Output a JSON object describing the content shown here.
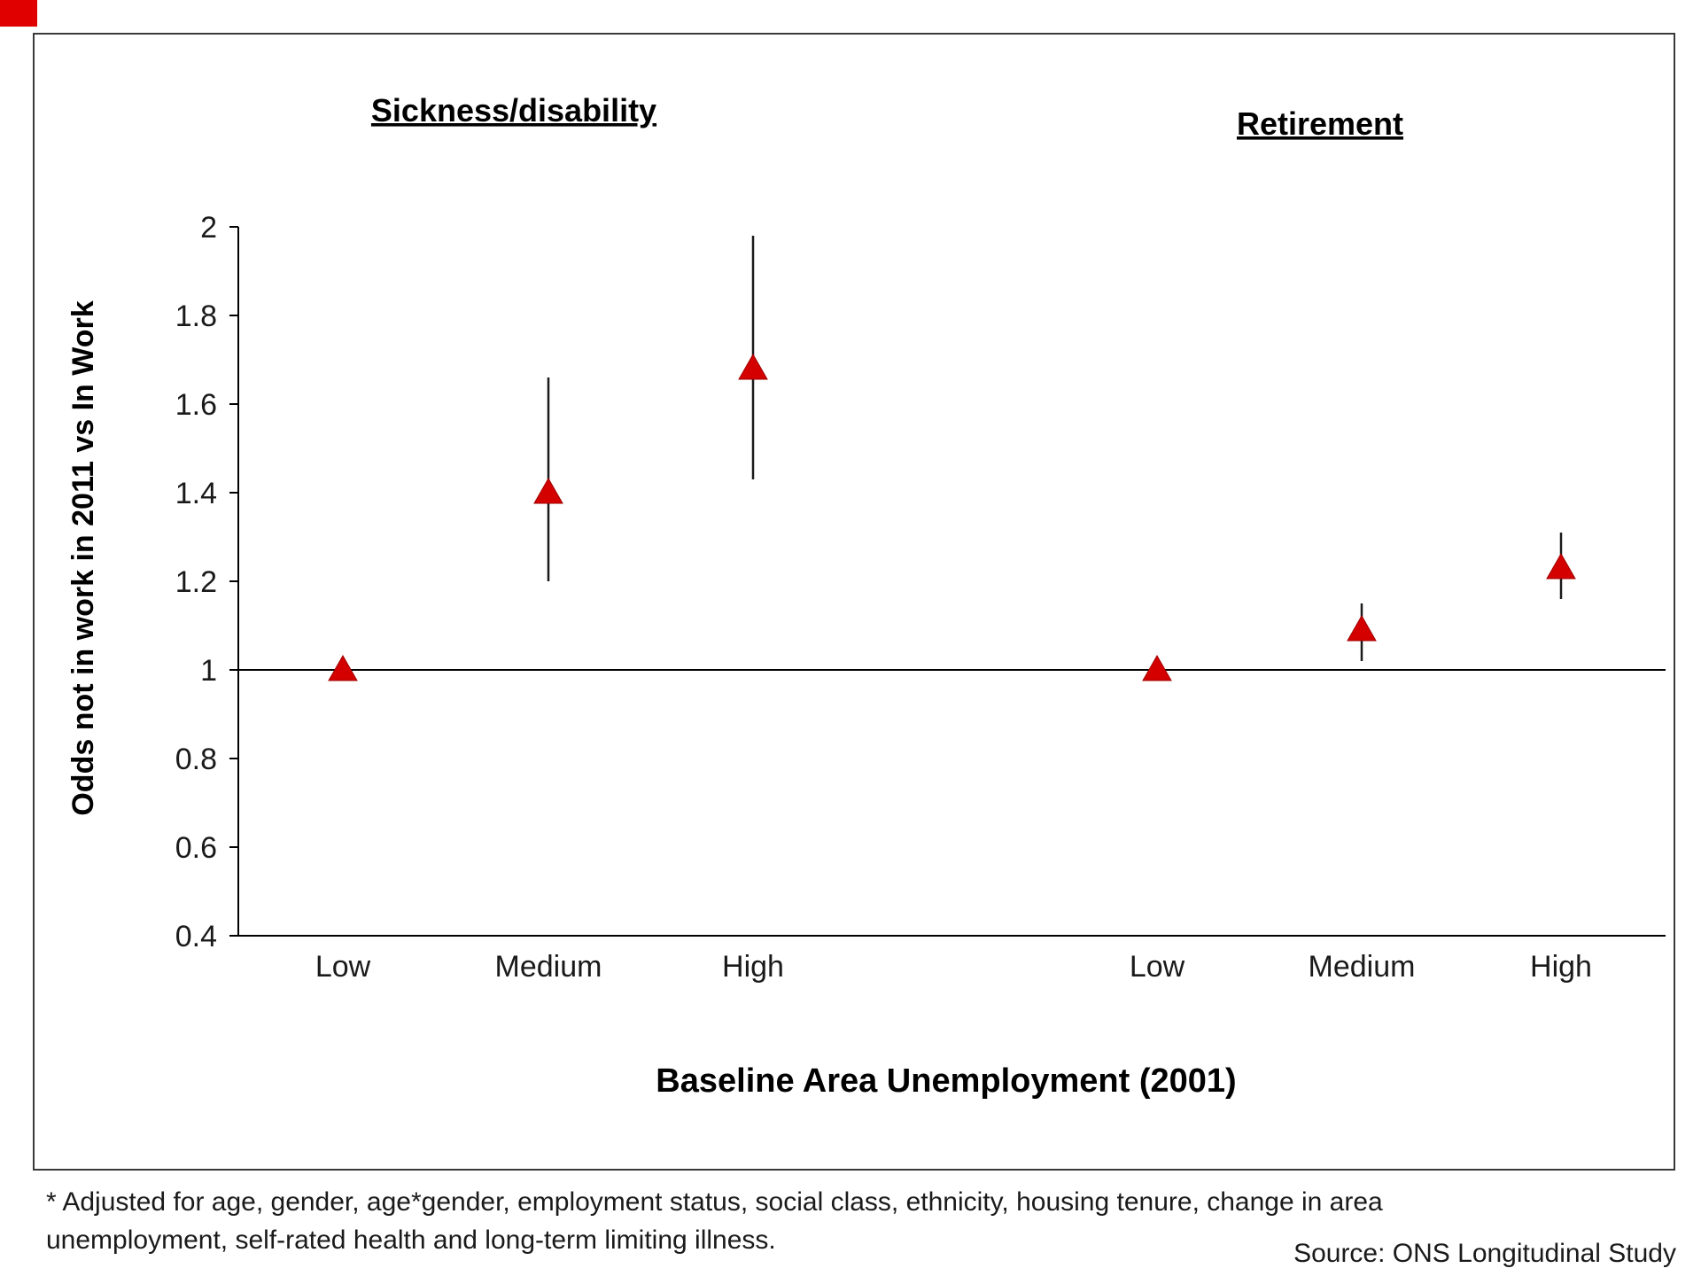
{
  "chart_data": {
    "type": "scatter",
    "title": "",
    "ylabel": "Odds not in work in 2011 vs In Work",
    "xlabel": "Baseline Area Unemployment (2001)",
    "ylim": [
      0.4,
      2
    ],
    "yticks": [
      0.4,
      0.6,
      0.8,
      1,
      1.2,
      1.4,
      1.6,
      1.8,
      2
    ],
    "reference_line": 1,
    "grid": "off",
    "legend": "none",
    "marker": "triangle-up",
    "marker_color": "#d40000",
    "panels": [
      {
        "title": "Sickness/disability",
        "categories": [
          "Low",
          "Medium",
          "High"
        ],
        "points": [
          {
            "category": "Low",
            "odds": 1.0,
            "ci_low": 1.0,
            "ci_high": 1.0
          },
          {
            "category": "Medium",
            "odds": 1.4,
            "ci_low": 1.2,
            "ci_high": 1.66
          },
          {
            "category": "High",
            "odds": 1.68,
            "ci_low": 1.43,
            "ci_high": 1.98
          }
        ]
      },
      {
        "title": "Retirement",
        "categories": [
          "Low",
          "Medium",
          "High"
        ],
        "points": [
          {
            "category": "Low",
            "odds": 1.0,
            "ci_low": 1.0,
            "ci_high": 1.0
          },
          {
            "category": "Medium",
            "odds": 1.09,
            "ci_low": 1.02,
            "ci_high": 1.15
          },
          {
            "category": "High",
            "odds": 1.23,
            "ci_low": 1.16,
            "ci_high": 1.31
          }
        ]
      }
    ]
  },
  "footnote": "* Adjusted for age, gender, age*gender, employment status, social class, ethnicity, housing tenure, change in area unemployment, self-rated health and long-term limiting illness.",
  "source": "Source: ONS Longitudinal Study"
}
